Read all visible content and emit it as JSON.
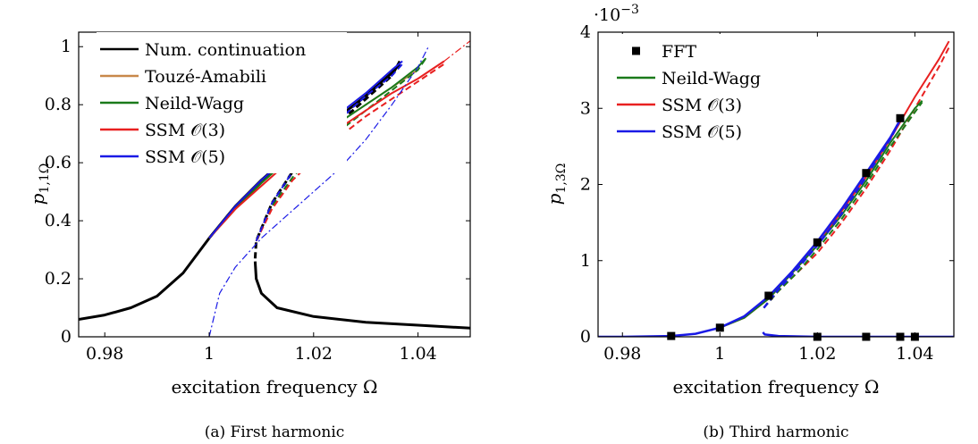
{
  "chart_data": [
    {
      "type": "line",
      "caption": "(a) First harmonic",
      "xlabel": "excitation frequency Ω",
      "ylabel_main": "p",
      "ylabel_sub": "1,1Ω",
      "xlim": [
        0.975,
        1.05
      ],
      "ylim": [
        0,
        1.05
      ],
      "xticks": [
        "0.98",
        "1",
        "1.02",
        "1.04"
      ],
      "xtick_values": [
        0.98,
        1.0,
        1.02,
        1.04
      ],
      "yticks": [
        "0",
        "0.2",
        "0.4",
        "0.6",
        "0.8",
        "1"
      ],
      "ytick_values": [
        0,
        0.2,
        0.4,
        0.6,
        0.8,
        1.0
      ],
      "legend_position": "top-left",
      "legend": [
        {
          "label": "Num. continuation",
          "color": "#000000"
        },
        {
          "label": "Touzé-Amabili",
          "color": "#c8884a"
        },
        {
          "label": "Neild-Wagg",
          "color": "#1a7a1a"
        },
        {
          "label": "SSM 𝒪(3)",
          "color": "#e82020"
        },
        {
          "label": "SSM 𝒪(5)",
          "color": "#1a1ae6"
        }
      ],
      "series": [
        {
          "name": "Num. continuation",
          "color": "#000000",
          "style": "solid",
          "width": 3,
          "x": [
            0.975,
            0.98,
            0.985,
            0.99,
            0.995,
            1.0,
            1.005,
            1.01,
            1.015,
            1.02,
            1.025,
            1.03,
            1.035,
            1.0365
          ],
          "y": [
            0.06,
            0.075,
            0.1,
            0.14,
            0.22,
            0.34,
            0.45,
            0.54,
            0.62,
            0.69,
            0.76,
            0.83,
            0.91,
            0.94
          ]
        },
        {
          "name": "Num. continuation",
          "color": "#000000",
          "style": "dashed",
          "width": 3,
          "x": [
            1.0088,
            1.009,
            1.012,
            1.016,
            1.02,
            1.025,
            1.03,
            1.035,
            1.0365
          ],
          "y": [
            0.27,
            0.33,
            0.46,
            0.57,
            0.65,
            0.74,
            0.82,
            0.9,
            0.95
          ]
        },
        {
          "name": "Num. continuation",
          "color": "#000000",
          "style": "solid",
          "width": 3,
          "x": [
            1.0088,
            1.009,
            1.01,
            1.013,
            1.02,
            1.03,
            1.04,
            1.05
          ],
          "y": [
            0.26,
            0.2,
            0.15,
            0.1,
            0.07,
            0.05,
            0.04,
            0.03
          ]
        },
        {
          "name": "Touzé-Amabili",
          "color": "#c8884a",
          "style": "solid",
          "width": 2,
          "x": [
            1.0,
            1.005,
            1.01,
            1.015,
            1.02,
            1.025,
            1.03,
            1.035,
            1.04
          ],
          "y": [
            0.34,
            0.44,
            0.53,
            0.61,
            0.68,
            0.74,
            0.8,
            0.86,
            0.92
          ]
        },
        {
          "name": "Neild-Wagg",
          "color": "#1a7a1a",
          "style": "solid",
          "width": 2,
          "x": [
            1.0,
            1.005,
            1.01,
            1.015,
            1.02,
            1.025,
            1.03,
            1.035,
            1.04,
            1.0415
          ],
          "y": [
            0.34,
            0.44,
            0.53,
            0.61,
            0.68,
            0.74,
            0.8,
            0.86,
            0.93,
            0.96
          ]
        },
        {
          "name": "Neild-Wagg",
          "color": "#1a7a1a",
          "style": "dashed",
          "width": 2,
          "x": [
            1.009,
            1.012,
            1.016,
            1.02,
            1.025,
            1.03,
            1.035,
            1.04,
            1.0415
          ],
          "y": [
            0.33,
            0.45,
            0.55,
            0.63,
            0.71,
            0.78,
            0.85,
            0.92,
            0.96
          ]
        },
        {
          "name": "SSM 𝒪(3)",
          "color": "#e82020",
          "style": "solid",
          "width": 2,
          "x": [
            1.0,
            1.005,
            1.01,
            1.015,
            1.02,
            1.025,
            1.03,
            1.035,
            1.04,
            1.045
          ],
          "y": [
            0.34,
            0.44,
            0.52,
            0.6,
            0.66,
            0.72,
            0.78,
            0.84,
            0.89,
            0.95
          ]
        },
        {
          "name": "SSM 𝒪(3)",
          "color": "#e82020",
          "style": "dashed",
          "width": 2,
          "x": [
            1.009,
            1.012,
            1.016,
            1.02,
            1.025,
            1.03,
            1.035,
            1.04,
            1.045
          ],
          "y": [
            0.33,
            0.44,
            0.54,
            0.61,
            0.69,
            0.76,
            0.82,
            0.88,
            0.94
          ]
        },
        {
          "name": "SSM 𝒪(3)",
          "color": "#e82020",
          "style": "dashdot",
          "width": 1.2,
          "x": [
            1.045,
            1.0475,
            1.05
          ],
          "y": [
            0.95,
            0.985,
            1.02
          ]
        },
        {
          "name": "SSM 𝒪(5)",
          "color": "#1a1ae6",
          "style": "solid",
          "width": 2,
          "x": [
            1.0,
            1.005,
            1.01,
            1.015,
            1.02,
            1.025,
            1.03,
            1.035,
            1.037
          ],
          "y": [
            0.34,
            0.45,
            0.54,
            0.62,
            0.7,
            0.77,
            0.84,
            0.92,
            0.95
          ]
        },
        {
          "name": "SSM 𝒪(5)",
          "color": "#1a1ae6",
          "style": "dashed",
          "width": 2,
          "x": [
            1.009,
            1.012,
            1.016,
            1.02,
            1.025,
            1.03,
            1.035,
            1.037
          ],
          "y": [
            0.33,
            0.46,
            0.57,
            0.66,
            0.75,
            0.83,
            0.9,
            0.94
          ]
        },
        {
          "name": "SSM 𝒪(5)",
          "color": "#1a1ae6",
          "style": "dashdot",
          "width": 1.2,
          "x": [
            1.0,
            1.002,
            1.005,
            1.01,
            1.015,
            1.02,
            1.025,
            1.03,
            1.035,
            1.04,
            1.042
          ],
          "y": [
            0.0,
            0.15,
            0.24,
            0.34,
            0.42,
            0.5,
            0.58,
            0.68,
            0.8,
            0.93,
            1.0
          ]
        }
      ]
    },
    {
      "type": "line",
      "caption": "(b) Third harmonic",
      "xlabel": "excitation frequency Ω",
      "ylabel_main": "p",
      "ylabel_sub": "1,3Ω",
      "scale_label_base": "·10",
      "scale_label_exp": "−3",
      "xlim": [
        0.975,
        1.048
      ],
      "ylim": [
        0,
        4
      ],
      "xticks": [
        "0.98",
        "1",
        "1.02",
        "1.04"
      ],
      "xtick_values": [
        0.98,
        1.0,
        1.02,
        1.04
      ],
      "yticks": [
        "0",
        "1",
        "2",
        "3",
        "4"
      ],
      "ytick_values": [
        0,
        1,
        2,
        3,
        4
      ],
      "legend_position": "top-left",
      "legend": [
        {
          "label": "FFT",
          "color": "#000000",
          "marker": "square"
        },
        {
          "label": "Neild-Wagg",
          "color": "#1a7a1a"
        },
        {
          "label": "SSM 𝒪(3)",
          "color": "#e82020"
        },
        {
          "label": "SSM 𝒪(5)",
          "color": "#1a1ae6"
        }
      ],
      "series": [
        {
          "name": "SSM 𝒪(3)",
          "color": "#e82020",
          "style": "solid",
          "width": 2,
          "x": [
            1.0,
            1.005,
            1.01,
            1.015,
            1.02,
            1.025,
            1.03,
            1.035,
            1.04,
            1.045,
            1.047
          ],
          "y": [
            0.12,
            0.25,
            0.5,
            0.85,
            1.2,
            1.65,
            2.1,
            2.6,
            3.15,
            3.65,
            3.88
          ]
        },
        {
          "name": "SSM 𝒪(3)",
          "color": "#e82020",
          "style": "dashed",
          "width": 2,
          "x": [
            1.009,
            1.012,
            1.016,
            1.02,
            1.025,
            1.03,
            1.035,
            1.04,
            1.045,
            1.047
          ],
          "y": [
            0.38,
            0.6,
            0.85,
            1.1,
            1.5,
            1.95,
            2.45,
            3.0,
            3.55,
            3.8
          ]
        },
        {
          "name": "Neild-Wagg",
          "color": "#1a7a1a",
          "style": "solid",
          "width": 2,
          "x": [
            1.0,
            1.005,
            1.01,
            1.015,
            1.02,
            1.025,
            1.03,
            1.035,
            1.04,
            1.0415
          ],
          "y": [
            0.12,
            0.25,
            0.5,
            0.85,
            1.2,
            1.6,
            2.05,
            2.55,
            3.0,
            3.1
          ]
        },
        {
          "name": "Neild-Wagg",
          "color": "#1a7a1a",
          "style": "dashed",
          "width": 2,
          "x": [
            1.009,
            1.012,
            1.016,
            1.02,
            1.025,
            1.03,
            1.035,
            1.04,
            1.0415
          ],
          "y": [
            0.38,
            0.6,
            0.85,
            1.15,
            1.55,
            2.0,
            2.5,
            2.95,
            3.08
          ]
        },
        {
          "name": "SSM 𝒪(5)",
          "color": "#1a1ae6",
          "style": "solid",
          "width": 2.5,
          "x": [
            0.975,
            0.98,
            0.99,
            0.995,
            1.0,
            1.005,
            1.01,
            1.015,
            1.02,
            1.025,
            1.03,
            1.035,
            1.037
          ],
          "y": [
            0.0,
            0.0,
            0.01,
            0.04,
            0.12,
            0.27,
            0.53,
            0.87,
            1.25,
            1.68,
            2.15,
            2.62,
            2.85
          ]
        },
        {
          "name": "SSM 𝒪(5)",
          "color": "#1a1ae6",
          "style": "dashed",
          "width": 2.5,
          "x": [
            1.009,
            1.012,
            1.016,
            1.02,
            1.025,
            1.03,
            1.035,
            1.037
          ],
          "y": [
            0.38,
            0.62,
            0.9,
            1.2,
            1.62,
            2.1,
            2.6,
            2.85
          ]
        },
        {
          "name": "SSM 𝒪(5)",
          "color": "#1a1ae6",
          "style": "solid",
          "width": 2.5,
          "x": [
            1.0088,
            1.0092,
            1.012,
            1.02,
            1.03,
            1.04,
            1.048
          ],
          "y": [
            0.06,
            0.03,
            0.01,
            0.0,
            0.0,
            0.0,
            0.0
          ]
        }
      ],
      "markers": {
        "name": "FFT",
        "shape": "square",
        "color": "#000000",
        "x": [
          0.99,
          1.0,
          1.01,
          1.02,
          1.03,
          1.037,
          1.02,
          1.03,
          1.037,
          1.04
        ],
        "y": [
          0.01,
          0.12,
          0.54,
          1.24,
          2.15,
          2.87,
          0.0,
          0.0,
          0.0,
          0.0
        ]
      }
    }
  ]
}
